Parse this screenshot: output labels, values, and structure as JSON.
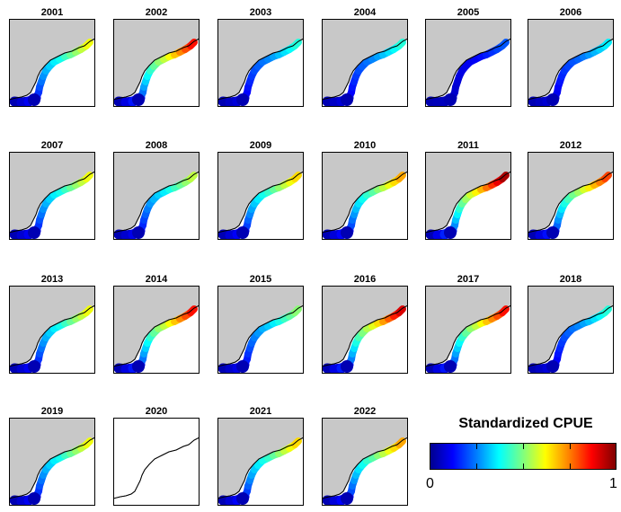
{
  "title": "",
  "panels": [
    {
      "year": "2001",
      "level": 0.55
    },
    {
      "year": "2002",
      "level": 0.8
    },
    {
      "year": "2003",
      "level": 0.35
    },
    {
      "year": "2004",
      "level": 0.35
    },
    {
      "year": "2005",
      "level": 0.15
    },
    {
      "year": "2006",
      "level": 0.3
    },
    {
      "year": "2007",
      "level": 0.55
    },
    {
      "year": "2008",
      "level": 0.5
    },
    {
      "year": "2009",
      "level": 0.6
    },
    {
      "year": "2010",
      "level": 0.65
    },
    {
      "year": "2011",
      "level": 0.9
    },
    {
      "year": "2012",
      "level": 0.75
    },
    {
      "year": "2013",
      "level": 0.55
    },
    {
      "year": "2014",
      "level": 0.8
    },
    {
      "year": "2015",
      "level": 0.45
    },
    {
      "year": "2016",
      "level": 0.85
    },
    {
      "year": "2017",
      "level": 0.8
    },
    {
      "year": "2018",
      "level": 0.35
    },
    {
      "year": "2019",
      "level": 0.55
    },
    {
      "year": "2020",
      "level": null
    },
    {
      "year": "2021",
      "level": 0.6
    },
    {
      "year": "2022",
      "level": 0.65
    }
  ],
  "colorbar": {
    "title": "Standardized CPUE",
    "min_label": "0",
    "max_label": "1",
    "colormap": "jet"
  },
  "colors": {
    "land": "#c8c8c8",
    "no_data_land": "#ffffff",
    "coast": "#000000"
  }
}
